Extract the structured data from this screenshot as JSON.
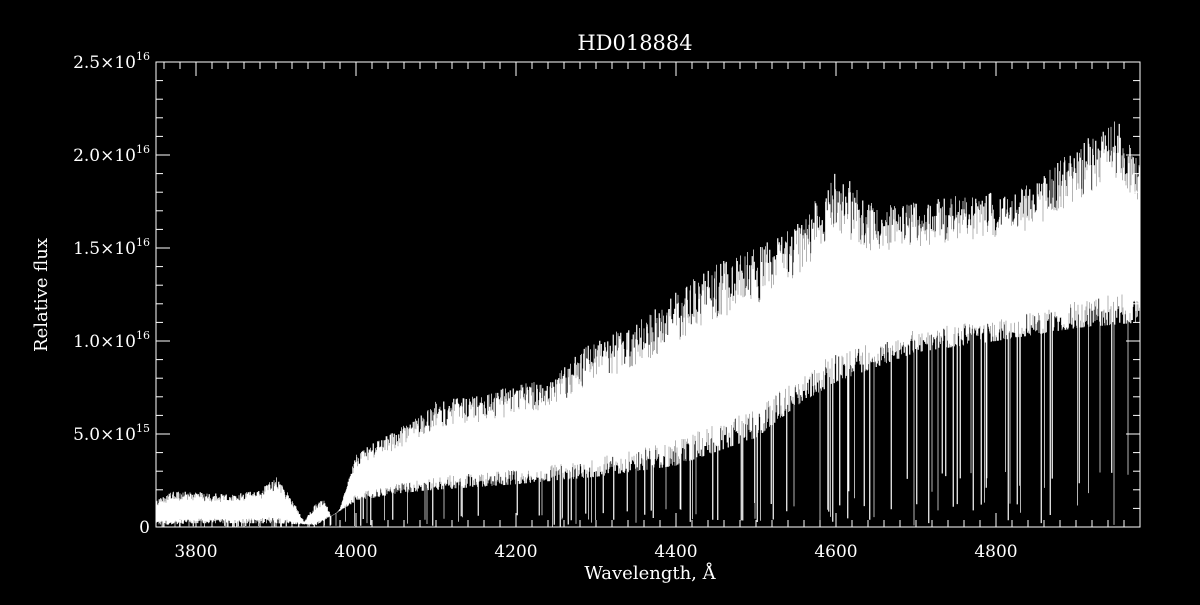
{
  "chart_data": {
    "type": "line",
    "title": "HD018884",
    "xlabel": "Wavelength, Å",
    "ylabel": "Relative flux",
    "xlim": [
      3750,
      4980
    ],
    "ylim": [
      0,
      2.5e+16
    ],
    "grid": false,
    "x_ticks": [
      3800,
      4000,
      4200,
      4400,
      4600,
      4800
    ],
    "x_tick_labels": [
      "3800",
      "4000",
      "4200",
      "4400",
      "4600",
      "4800"
    ],
    "y_ticks": [
      0,
      5000000000000000.0,
      1e+16,
      1.5e+16,
      2e+16,
      2.5e+16
    ],
    "y_tick_labels": [
      {
        "mantissa": "0",
        "exponent": ""
      },
      {
        "mantissa": "5.0×10",
        "exponent": "15"
      },
      {
        "mantissa": "1.0×10",
        "exponent": "16"
      },
      {
        "mantissa": "1.5×10",
        "exponent": "16"
      },
      {
        "mantissa": "2.0×10",
        "exponent": "16"
      },
      {
        "mantissa": "2.5×10",
        "exponent": "16"
      }
    ],
    "series": [
      {
        "color": "#ffffff",
        "upper_envelope": {
          "x": [
            3750,
            3770,
            3800,
            3830,
            3850,
            3880,
            3900,
            3920,
            3935,
            3950,
            3960,
            3970,
            3980,
            4000,
            4020,
            4050,
            4080,
            4100,
            4150,
            4200,
            4250,
            4280,
            4300,
            4350,
            4400,
            4450,
            4500,
            4550,
            4600,
            4620,
            4650,
            4700,
            4750,
            4800,
            4850,
            4900,
            4950,
            4980
          ],
          "y": [
            1500000000000000.0,
            1900000000000000.0,
            1900000000000000.0,
            1800000000000000.0,
            1800000000000000.0,
            2000000000000000.0,
            2800000000000000.0,
            1500000000000000.0,
            300000000000000.0,
            1300000000000000.0,
            1500000000000000.0,
            400000000000000.0,
            1000000000000000.0,
            4000000000000000.0,
            4500000000000000.0,
            5200000000000000.0,
            6000000000000000.0,
            6800000000000000.0,
            7100000000000000.0,
            7600000000000000.0,
            8200000000000000.0,
            9500000000000000.0,
            1e+16,
            1.1e+16,
            1.27e+16,
            1.42e+16,
            1.5e+16,
            1.62e+16,
            1.92e+16,
            1.85e+16,
            1.72e+16,
            1.75e+16,
            1.78e+16,
            1.8e+16,
            1.85e+16,
            2.05e+16,
            2.2e+16,
            2e+16
          ]
        },
        "lower_envelope": {
          "x": [
            3750,
            3800,
            3900,
            3950,
            4000,
            4050,
            4100,
            4200,
            4300,
            4400,
            4500,
            4550,
            4600,
            4700,
            4800,
            4900,
            4980
          ],
          "y": [
            100000000000000.0,
            200000000000000.0,
            200000000000000.0,
            100000000000000.0,
            1400000000000000.0,
            1800000000000000.0,
            2000000000000000.0,
            2300000000000000.0,
            2700000000000000.0,
            3300000000000000.0,
            4800000000000000.0,
            6500000000000000.0,
            7800000000000000.0,
            9400000000000000.0,
            1e+16,
            1.07e+16,
            1.1e+16
          ]
        }
      }
    ]
  }
}
